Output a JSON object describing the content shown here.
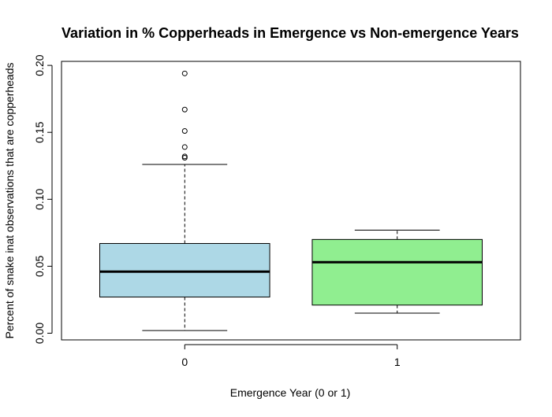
{
  "chart_data": {
    "type": "boxplot",
    "title": "Variation in % Copperheads in Emergence vs Non-emergence Years",
    "xlabel": "Emergence Year (0 or 1)",
    "ylabel": "Percent of snake inat observations that are copperheads",
    "categories": [
      "0",
      "1"
    ],
    "ylim": [
      -0.005,
      0.203
    ],
    "yticks": [
      0.0,
      0.05,
      0.1,
      0.15,
      0.2
    ],
    "ytick_labels": [
      "0.00",
      "0.05",
      "0.10",
      "0.15",
      "0.20"
    ],
    "grid": false,
    "boxes": [
      {
        "category": "0",
        "fill": "#add8e6",
        "whisker_low": 0.002,
        "q1": 0.027,
        "median": 0.046,
        "q3": 0.067,
        "whisker_high": 0.126,
        "outliers": [
          0.131,
          0.132,
          0.139,
          0.151,
          0.167,
          0.194
        ]
      },
      {
        "category": "1",
        "fill": "#90ee90",
        "whisker_low": 0.015,
        "q1": 0.021,
        "median": 0.053,
        "q3": 0.07,
        "whisker_high": 0.077,
        "outliers": []
      }
    ]
  }
}
